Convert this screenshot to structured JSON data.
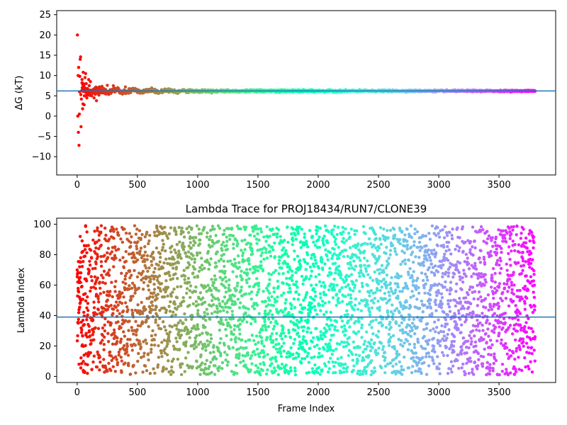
{
  "chart_data": [
    {
      "type": "scatter",
      "title": "",
      "xlabel": "",
      "ylabel": "ΔG (kT)",
      "xlim": [
        -170,
        3970
      ],
      "ylim": [
        -14.5,
        26
      ],
      "xticks": [
        0,
        500,
        1000,
        1500,
        2000,
        2500,
        3000,
        3500
      ],
      "yticks": [
        -10,
        -5,
        0,
        5,
        10,
        15,
        20,
        25
      ],
      "hline": 6.2,
      "colormap": "rainbow_r (red at frame 0 → violet at last frame)",
      "frames": 3800,
      "series": [
        {
          "points": [
            [
              2,
              20.0
            ],
            [
              5,
              0.0
            ],
            [
              8,
              10.0
            ],
            [
              10,
              -4.0
            ],
            [
              12,
              12.0
            ],
            [
              15,
              -7.2
            ],
            [
              18,
              0.5
            ],
            [
              20,
              6.0
            ],
            [
              22,
              9.8
            ],
            [
              25,
              14.0
            ],
            [
              28,
              14.6
            ],
            [
              30,
              5.3
            ],
            [
              32,
              -2.6
            ],
            [
              35,
              4.2
            ],
            [
              38,
              6.3
            ],
            [
              40,
              8.2
            ],
            [
              45,
              1.8
            ],
            [
              48,
              3.0
            ],
            [
              50,
              10.8
            ],
            [
              55,
              7.5
            ],
            [
              58,
              2.8
            ],
            [
              60,
              5.0
            ],
            [
              65,
              9.5
            ],
            [
              70,
              10.5
            ],
            [
              75,
              8.0
            ],
            [
              80,
              4.5
            ],
            [
              85,
              6.8
            ],
            [
              90,
              5.4
            ],
            [
              95,
              9.0
            ],
            [
              100,
              7.5
            ],
            [
              110,
              8.5
            ],
            [
              120,
              5.0
            ],
            [
              130,
              6.5
            ],
            [
              140,
              4.5
            ],
            [
              150,
              7.0
            ],
            [
              160,
              3.8
            ],
            [
              170,
              5.6
            ],
            [
              180,
              5.2
            ],
            [
              200,
              7.2
            ],
            [
              220,
              6.8
            ],
            [
              250,
              7.6
            ],
            [
              280,
              5.6
            ],
            [
              300,
              7.5
            ],
            [
              350,
              6.0
            ],
            [
              400,
              7.2
            ],
            [
              450,
              6.4
            ],
            [
              500,
              5.8
            ],
            [
              600,
              6.1
            ],
            [
              700,
              6.5
            ],
            [
              800,
              6.2
            ],
            [
              1000,
              6.3
            ],
            [
              1500,
              6.2
            ],
            [
              2000,
              6.1
            ],
            [
              2500,
              6.2
            ],
            [
              3000,
              6.2
            ],
            [
              3800,
              6.2
            ]
          ]
        }
      ]
    },
    {
      "type": "scatter",
      "title": "Lambda Trace for PROJ18434/RUN7/CLONE39",
      "xlabel": "Frame Index",
      "ylabel": "Lambda Index",
      "xlim": [
        -170,
        3970
      ],
      "ylim": [
        -4,
        104
      ],
      "xticks": [
        0,
        500,
        1000,
        1500,
        2000,
        2500,
        3000,
        3500
      ],
      "yticks": [
        0,
        20,
        40,
        60,
        80,
        100
      ],
      "hline": 39,
      "colormap": "rainbow_r (red at frame 0 → violet at last frame)",
      "frames": 3800,
      "series": [
        {
          "distribution": "one point per frame, lambda index spread roughly uniformly over 1–99",
          "sample_points": [
            [
              0,
              70
            ],
            [
              5,
              62
            ],
            [
              10,
              35
            ],
            [
              15,
              8
            ],
            [
              20,
              72
            ],
            [
              25,
              92
            ],
            [
              30,
              50
            ],
            [
              40,
              20
            ],
            [
              50,
              4
            ],
            [
              60,
              86
            ],
            [
              70,
              99
            ],
            [
              80,
              45
            ],
            [
              100,
              30
            ],
            [
              150,
              88
            ],
            [
              200,
              99
            ],
            [
              300,
              12
            ],
            [
              400,
              66
            ],
            [
              500,
              42
            ],
            [
              700,
              94
            ],
            [
              900,
              20
            ],
            [
              1100,
              58
            ],
            [
              1400,
              98
            ],
            [
              1700,
              8
            ],
            [
              2000,
              72
            ],
            [
              2300,
              35
            ],
            [
              2600,
              96
            ],
            [
              2900,
              15
            ],
            [
              3200,
              62
            ],
            [
              3500,
              28
            ],
            [
              3790,
              88
            ]
          ]
        }
      ]
    }
  ]
}
